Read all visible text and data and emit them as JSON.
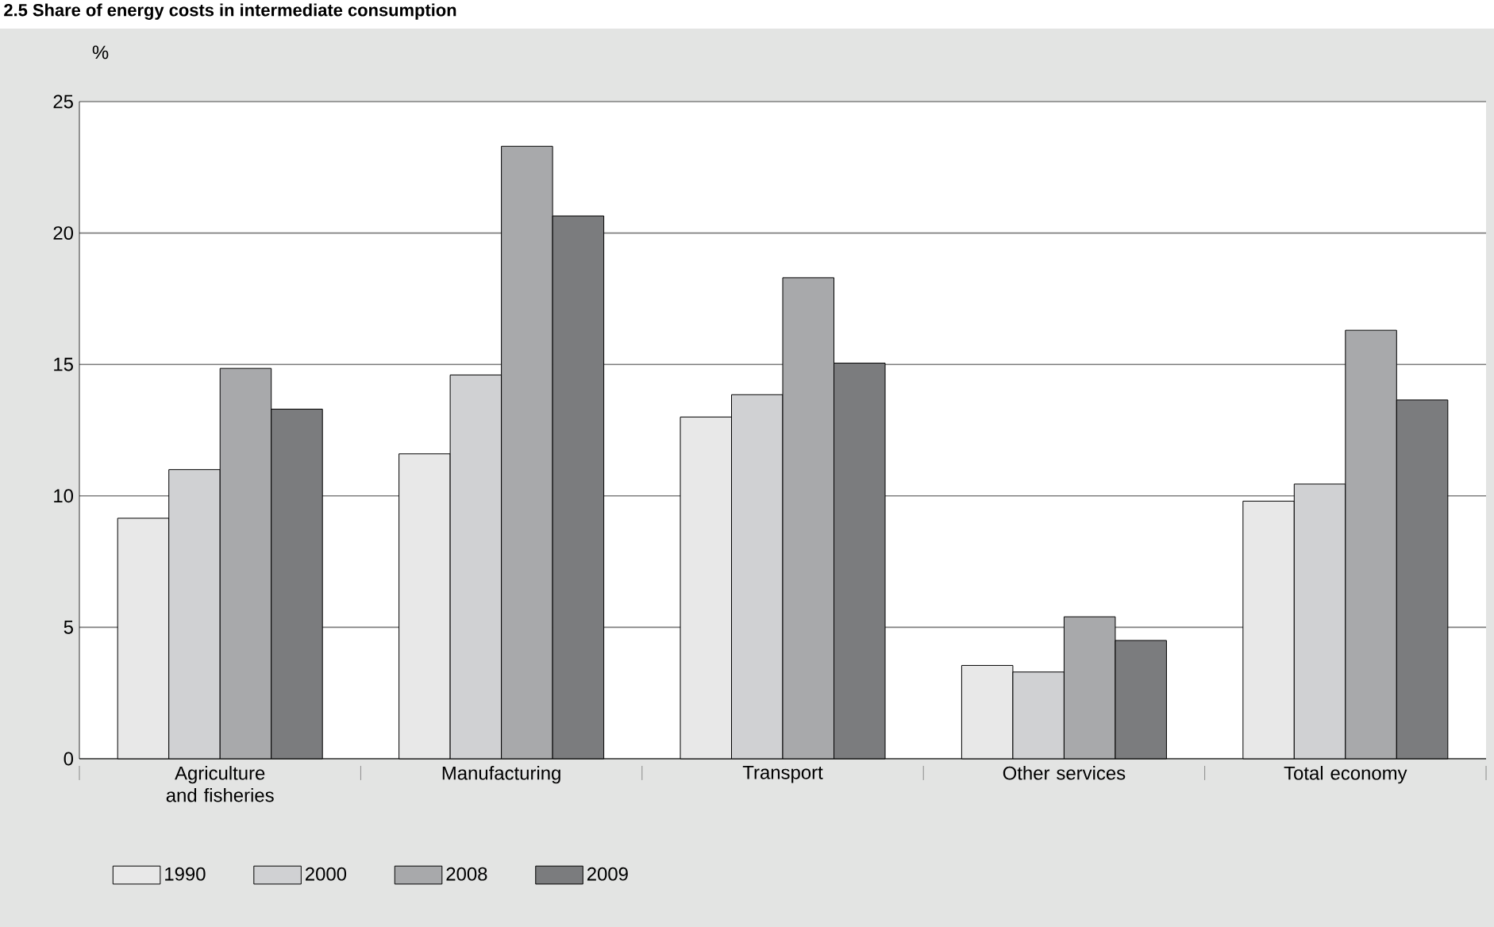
{
  "chart_data": {
    "type": "bar",
    "title": "2.5 Share of energy costs in intermediate consumption",
    "ylabel": "%",
    "categories": [
      "Agriculture and fisheries",
      "Manufacturing",
      "Transport",
      "Other services",
      "Total economy"
    ],
    "series": [
      {
        "name": "1990",
        "color": "#e8e8e8",
        "values": [
          9.15,
          11.6,
          13.0,
          3.55,
          9.8
        ]
      },
      {
        "name": "2000",
        "color": "#d0d1d3",
        "values": [
          11.0,
          14.6,
          13.85,
          3.3,
          10.45
        ]
      },
      {
        "name": "2008",
        "color": "#a8a9ab",
        "values": [
          14.85,
          23.3,
          18.3,
          5.4,
          16.3
        ]
      },
      {
        "name": "2009",
        "color": "#7b7c7e",
        "values": [
          13.3,
          20.65,
          15.05,
          4.5,
          13.65
        ]
      }
    ],
    "ylim": [
      0,
      25
    ],
    "yticks": [
      0,
      5,
      10,
      15,
      20,
      25
    ],
    "grid": "y",
    "legend": "bottom"
  }
}
